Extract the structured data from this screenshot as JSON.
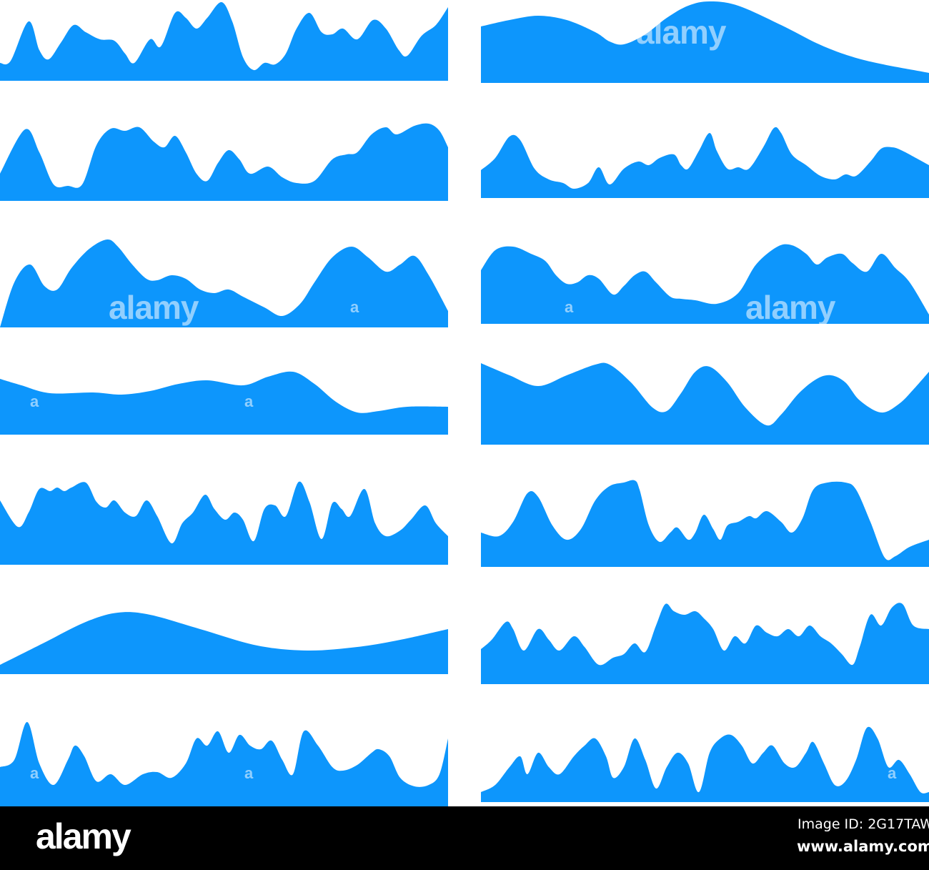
{
  "colors": {
    "wave": "#0d96fc",
    "background": "#ffffff",
    "footer": "#000000"
  },
  "watermark": {
    "word": "alamy",
    "letter": "a"
  },
  "footer": {
    "logo": "alamy",
    "image_id": "Image ID: 2G17TAW",
    "url": "www.alamy.com"
  }
}
